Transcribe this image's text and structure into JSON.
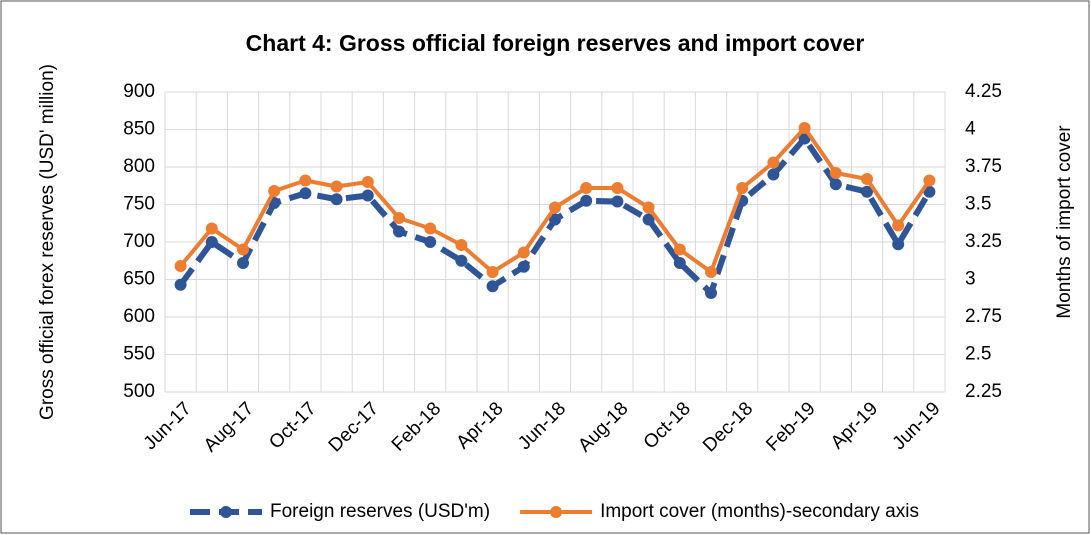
{
  "chart_data": {
    "type": "line",
    "title": "Chart 4: Gross official foreign reserves and import cover",
    "y_label": "Gross official forex reserves (USD' million)",
    "y2_label": "Months of import cover",
    "categories": [
      "Jun-17",
      null,
      "Aug-17",
      null,
      "Oct-17",
      null,
      "Dec-17",
      null,
      "Feb-18",
      null,
      "Apr-18",
      null,
      "Jun-18",
      null,
      "Aug-18",
      null,
      "Oct-18",
      null,
      "Dec-18",
      null,
      "Feb-19",
      null,
      "Apr-19",
      null,
      "Jun-19"
    ],
    "series": [
      {
        "name": "Foreign reserves (USD'm)",
        "color": "#2f5597",
        "dashed": true,
        "values": [
          643,
          700,
          672,
          752,
          765,
          757,
          762,
          714,
          700,
          675,
          641,
          667,
          730,
          755,
          754,
          730,
          672,
          632,
          755,
          790,
          838,
          777,
          767,
          697,
          767
        ]
      },
      {
        "name": "Import cover (months)-secondary axis",
        "color": "#ed7d31",
        "axis": "y2",
        "values": [
          3.09,
          3.34,
          3.2,
          3.59,
          3.66,
          3.62,
          3.65,
          3.41,
          3.34,
          3.23,
          3.05,
          3.18,
          3.48,
          3.61,
          3.61,
          3.48,
          3.2,
          3.05,
          3.61,
          3.78,
          4.01,
          3.71,
          3.67,
          3.36,
          3.66
        ]
      }
    ],
    "ylim": [
      500,
      900
    ],
    "yticks": [
      500,
      550,
      600,
      650,
      700,
      750,
      800,
      850,
      900
    ],
    "y2lim": [
      2.25,
      4.25
    ],
    "y2ticks": [
      2.25,
      2.5,
      2.75,
      3,
      3.25,
      3.5,
      3.75,
      4,
      4.25
    ],
    "grid": true,
    "legend": "bottom"
  }
}
